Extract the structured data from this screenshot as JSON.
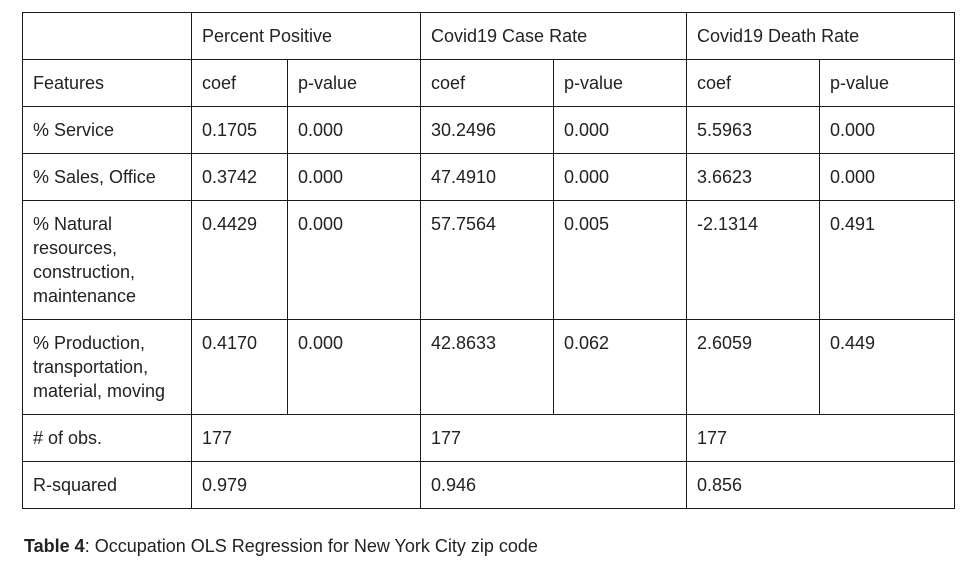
{
  "table": {
    "group_headers": [
      "Percent Positive",
      "Covid19 Case Rate",
      "Covid19 Death Rate"
    ],
    "features_label": "Features",
    "sub_headers": [
      "coef",
      "p-value",
      "coef",
      "p-value",
      "coef",
      "p-value"
    ],
    "rows": [
      {
        "feature": "% Service",
        "values": [
          "0.1705",
          "0.000",
          "30.2496",
          "0.000",
          "5.5963",
          "0.000"
        ]
      },
      {
        "feature": "% Sales, Office",
        "values": [
          "0.3742",
          "0.000",
          "47.4910",
          "0.000",
          "3.6623",
          "0.000"
        ]
      },
      {
        "feature": "% Natural resources, construction, maintenance",
        "values": [
          "0.4429",
          "0.000",
          "57.7564",
          "0.005",
          "-2.1314",
          "0.491"
        ]
      },
      {
        "feature": "% Production, transportation, material, moving",
        "values": [
          "0.4170",
          "0.000",
          "42.8633",
          "0.062",
          "2.6059",
          "0.449"
        ]
      }
    ],
    "obs": {
      "label": "# of obs.",
      "values": [
        "177",
        "177",
        "177"
      ]
    },
    "rsq": {
      "label": "R-squared",
      "values": [
        "0.979",
        "0.946",
        "0.856"
      ]
    }
  },
  "caption": {
    "label": "Table 4",
    "text": ": Occupation OLS Regression for New York City zip code"
  }
}
